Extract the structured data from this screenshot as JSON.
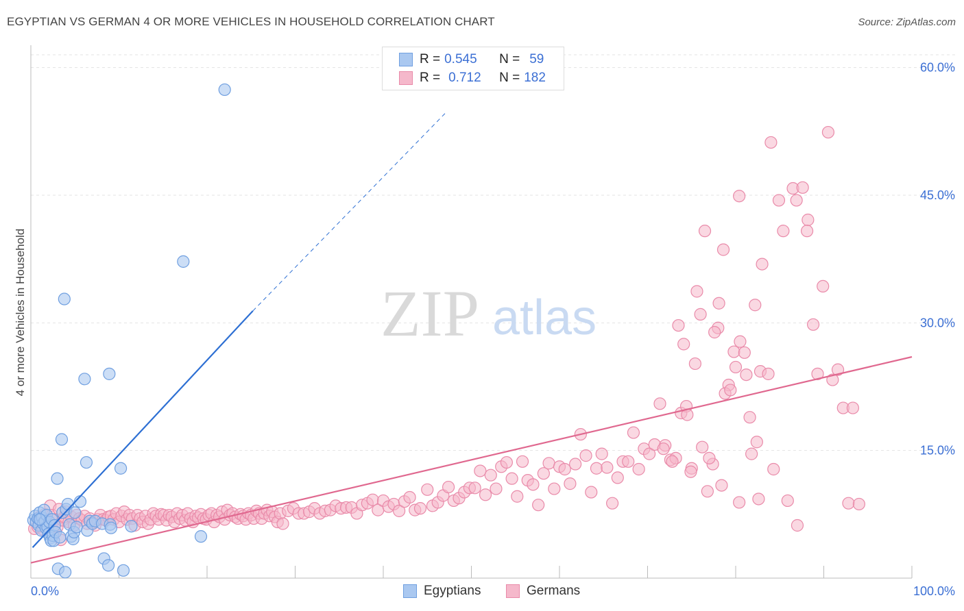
{
  "title": "EGYPTIAN VS GERMAN 4 OR MORE VEHICLES IN HOUSEHOLD CORRELATION CHART",
  "source": "Source: ZipAtlas.com",
  "watermark": {
    "zip": "ZIP",
    "atlas": "atlas"
  },
  "legend_top": {
    "egyptians": {
      "r_label": "R =",
      "r_value": "0.545",
      "n_label": "N =",
      "n_value": "59"
    },
    "germans": {
      "r_label": "R =",
      "r_value": "0.712",
      "n_label": "N =",
      "n_value": "182"
    }
  },
  "legend_bottom": {
    "egyptians": "Egyptians",
    "germans": "Germans"
  },
  "colors": {
    "egyptians_fill": "#aac8f0",
    "egyptians_stroke": "#6f9fe0",
    "egyptians_line": "#2d6fd3",
    "germans_fill": "#f5b8cb",
    "germans_stroke": "#e98aa9",
    "germans_line": "#e0688f",
    "tick_label": "#3b6fd4",
    "grid": "#e3e3e3"
  },
  "chart_data": {
    "type": "scatter",
    "title": "EGYPTIAN VS GERMAN 4 OR MORE VEHICLES IN HOUSEHOLD CORRELATION CHART",
    "xlabel": "",
    "ylabel": "4 or more Vehicles in Household",
    "xlim": [
      0,
      100
    ],
    "ylim": [
      0,
      61.5
    ],
    "x_tick_labels": [
      "0.0%",
      "100.0%"
    ],
    "y_ticks": [
      15,
      30,
      45,
      60
    ],
    "y_tick_labels": [
      "15.0%",
      "30.0%",
      "45.0%",
      "60.0%"
    ],
    "grid": true,
    "legend_position": "top-center",
    "series": [
      {
        "name": "Egyptians",
        "trend": {
          "x0": 0.2,
          "y0": 3.6,
          "x1": 25.2,
          "y1": 31.4,
          "dashed_to_x": 47,
          "dashed_to_y": 54.6
        },
        "points": [
          [
            0.3,
            6.8
          ],
          [
            0.5,
            7.3
          ],
          [
            0.6,
            6.6
          ],
          [
            0.8,
            7.0
          ],
          [
            0.9,
            6.2
          ],
          [
            1.0,
            7.7
          ],
          [
            1.1,
            6.9
          ],
          [
            1.2,
            5.6
          ],
          [
            1.3,
            7.1
          ],
          [
            1.4,
            6.4
          ],
          [
            1.5,
            8.0
          ],
          [
            1.6,
            6.7
          ],
          [
            1.7,
            5.9
          ],
          [
            1.8,
            7.4
          ],
          [
            1.9,
            6.0
          ],
          [
            2.0,
            5.2
          ],
          [
            2.1,
            6.6
          ],
          [
            2.2,
            4.7
          ],
          [
            2.3,
            4.4
          ],
          [
            2.4,
            6.9
          ],
          [
            2.5,
            5.0
          ],
          [
            2.6,
            4.4
          ],
          [
            2.7,
            6.2
          ],
          [
            2.8,
            5.4
          ],
          [
            3.0,
            11.7
          ],
          [
            3.1,
            1.1
          ],
          [
            3.3,
            4.8
          ],
          [
            3.5,
            16.3
          ],
          [
            3.6,
            7.7
          ],
          [
            3.8,
            32.8
          ],
          [
            3.9,
            0.7
          ],
          [
            4.0,
            8.1
          ],
          [
            4.2,
            8.7
          ],
          [
            4.4,
            6.3
          ],
          [
            4.6,
            4.9
          ],
          [
            4.8,
            4.6
          ],
          [
            4.9,
            5.4
          ],
          [
            5.0,
            7.7
          ],
          [
            5.2,
            6.0
          ],
          [
            5.6,
            9.0
          ],
          [
            6.1,
            23.4
          ],
          [
            6.3,
            13.6
          ],
          [
            6.4,
            5.6
          ],
          [
            6.7,
            6.7
          ],
          [
            7.0,
            6.4
          ],
          [
            7.3,
            6.7
          ],
          [
            8.1,
            6.4
          ],
          [
            8.3,
            2.3
          ],
          [
            8.8,
            1.5
          ],
          [
            8.9,
            24.0
          ],
          [
            9.0,
            6.3
          ],
          [
            9.1,
            5.9
          ],
          [
            10.2,
            12.9
          ],
          [
            10.5,
            0.9
          ],
          [
            11.4,
            6.1
          ],
          [
            17.3,
            37.2
          ],
          [
            19.3,
            4.9
          ],
          [
            22.0,
            57.4
          ],
          [
            1.0,
            6.9
          ]
        ]
      },
      {
        "name": "Germans",
        "trend": {
          "x0": 0,
          "y0": 1.8,
          "x1": 100,
          "y1": 26.0
        },
        "points": [
          [
            0.4,
            5.8
          ],
          [
            0.6,
            6.6
          ],
          [
            0.8,
            6.0
          ],
          [
            1.0,
            7.2
          ],
          [
            1.2,
            6.6
          ],
          [
            1.4,
            5.7
          ],
          [
            1.6,
            7.5
          ],
          [
            1.8,
            6.9
          ],
          [
            2.0,
            6.3
          ],
          [
            2.2,
            8.5
          ],
          [
            2.4,
            7.4
          ],
          [
            2.6,
            5.6
          ],
          [
            2.8,
            6.9
          ],
          [
            3.0,
            6.0
          ],
          [
            3.2,
            8.1
          ],
          [
            3.4,
            4.5
          ],
          [
            3.6,
            6.8
          ],
          [
            3.8,
            7.2
          ],
          [
            4.0,
            7.8
          ],
          [
            4.3,
            6.6
          ],
          [
            4.6,
            7.2
          ],
          [
            4.9,
            6.2
          ],
          [
            5.2,
            7.4
          ],
          [
            5.5,
            7.0
          ],
          [
            5.8,
            6.8
          ],
          [
            6.1,
            7.3
          ],
          [
            6.4,
            6.4
          ],
          [
            6.7,
            7.0
          ],
          [
            7.0,
            6.5
          ],
          [
            7.3,
            6.2
          ],
          [
            7.6,
            6.9
          ],
          [
            7.9,
            7.4
          ],
          [
            8.2,
            6.9
          ],
          [
            8.5,
            6.8
          ],
          [
            8.8,
            7.2
          ],
          [
            9.1,
            7.3
          ],
          [
            9.4,
            6.9
          ],
          [
            9.7,
            7.6
          ],
          [
            10.0,
            6.6
          ],
          [
            10.3,
            7.3
          ],
          [
            10.6,
            7.8
          ],
          [
            10.9,
            6.9
          ],
          [
            11.2,
            7.4
          ],
          [
            11.5,
            7.0
          ],
          [
            11.8,
            6.2
          ],
          [
            12.1,
            7.4
          ],
          [
            12.4,
            7.0
          ],
          [
            12.7,
            6.6
          ],
          [
            13.0,
            7.3
          ],
          [
            13.3,
            6.4
          ],
          [
            13.6,
            6.9
          ],
          [
            13.9,
            7.6
          ],
          [
            14.2,
            7.3
          ],
          [
            14.5,
            6.9
          ],
          [
            14.8,
            7.5
          ],
          [
            15.1,
            7.4
          ],
          [
            15.4,
            6.8
          ],
          [
            15.7,
            7.4
          ],
          [
            16.0,
            7.2
          ],
          [
            16.3,
            6.6
          ],
          [
            16.6,
            7.6
          ],
          [
            16.9,
            7.0
          ],
          [
            17.2,
            7.4
          ],
          [
            17.5,
            6.8
          ],
          [
            17.8,
            7.6
          ],
          [
            18.1,
            7.0
          ],
          [
            18.4,
            6.6
          ],
          [
            18.7,
            7.3
          ],
          [
            19.0,
            7.1
          ],
          [
            19.3,
            7.5
          ],
          [
            19.6,
            7.0
          ],
          [
            19.9,
            6.9
          ],
          [
            20.2,
            7.4
          ],
          [
            20.5,
            7.6
          ],
          [
            20.8,
            6.6
          ],
          [
            21.1,
            7.4
          ],
          [
            21.4,
            7.2
          ],
          [
            21.7,
            7.8
          ],
          [
            22.0,
            6.9
          ],
          [
            22.3,
            8.0
          ],
          [
            22.6,
            7.4
          ],
          [
            22.9,
            7.6
          ],
          [
            23.2,
            7.2
          ],
          [
            23.5,
            7.0
          ],
          [
            23.8,
            7.5
          ],
          [
            24.1,
            7.3
          ],
          [
            24.4,
            6.9
          ],
          [
            24.7,
            7.6
          ],
          [
            25.0,
            7.4
          ],
          [
            25.3,
            7.0
          ],
          [
            25.6,
            7.9
          ],
          [
            25.9,
            7.6
          ],
          [
            26.2,
            7.0
          ],
          [
            26.5,
            7.6
          ],
          [
            26.8,
            8.0
          ],
          [
            27.1,
            7.3
          ],
          [
            27.4,
            7.8
          ],
          [
            27.7,
            7.2
          ],
          [
            28.0,
            6.6
          ],
          [
            28.3,
            7.6
          ],
          [
            28.6,
            6.4
          ],
          [
            29.2,
            7.9
          ],
          [
            29.8,
            8.2
          ],
          [
            30.4,
            7.6
          ],
          [
            31.0,
            7.6
          ],
          [
            31.6,
            7.8
          ],
          [
            32.2,
            8.2
          ],
          [
            32.8,
            7.6
          ],
          [
            33.4,
            7.9
          ],
          [
            34.0,
            8.0
          ],
          [
            34.6,
            8.5
          ],
          [
            35.2,
            8.2
          ],
          [
            35.8,
            8.3
          ],
          [
            36.4,
            8.3
          ],
          [
            37.0,
            7.6
          ],
          [
            37.6,
            8.6
          ],
          [
            38.2,
            8.8
          ],
          [
            38.8,
            9.2
          ],
          [
            39.4,
            8.0
          ],
          [
            40.0,
            9.1
          ],
          [
            40.6,
            8.4
          ],
          [
            41.2,
            8.7
          ],
          [
            41.8,
            7.9
          ],
          [
            42.4,
            9.0
          ],
          [
            43.0,
            9.5
          ],
          [
            43.6,
            8.0
          ],
          [
            44.2,
            8.2
          ],
          [
            45.0,
            10.4
          ],
          [
            45.6,
            8.5
          ],
          [
            46.2,
            8.9
          ],
          [
            46.8,
            9.7
          ],
          [
            47.4,
            10.7
          ],
          [
            48.0,
            9.1
          ],
          [
            48.6,
            9.4
          ],
          [
            49.2,
            10.1
          ],
          [
            49.8,
            10.6
          ],
          [
            50.4,
            10.6
          ],
          [
            51.0,
            12.6
          ],
          [
            51.6,
            9.8
          ],
          [
            52.2,
            12.1
          ],
          [
            52.8,
            10.5
          ],
          [
            53.4,
            13.1
          ],
          [
            54.0,
            13.6
          ],
          [
            54.6,
            11.7
          ],
          [
            55.2,
            9.6
          ],
          [
            55.8,
            13.7
          ],
          [
            56.4,
            11.5
          ],
          [
            57.0,
            11.0
          ],
          [
            57.6,
            8.6
          ],
          [
            58.2,
            12.3
          ],
          [
            58.8,
            13.5
          ],
          [
            59.4,
            10.5
          ],
          [
            60.0,
            13.1
          ],
          [
            60.6,
            12.8
          ],
          [
            61.2,
            11.1
          ],
          [
            61.8,
            13.4
          ],
          [
            62.4,
            16.9
          ],
          [
            63.0,
            14.4
          ],
          [
            63.6,
            10.1
          ],
          [
            64.2,
            12.9
          ],
          [
            64.8,
            14.6
          ],
          [
            65.4,
            13.0
          ],
          [
            66.0,
            8.8
          ],
          [
            66.6,
            11.8
          ],
          [
            67.2,
            13.7
          ],
          [
            67.8,
            13.7
          ],
          [
            68.4,
            17.1
          ],
          [
            69.0,
            12.8
          ],
          [
            69.6,
            15.2
          ],
          [
            70.2,
            14.6
          ],
          [
            70.8,
            15.7
          ],
          [
            71.4,
            20.5
          ],
          [
            72.0,
            15.6
          ],
          [
            72.6,
            13.9
          ],
          [
            73.2,
            14.1
          ],
          [
            73.8,
            19.4
          ],
          [
            74.4,
            20.2
          ],
          [
            75.0,
            12.9
          ],
          [
            75.6,
            33.7
          ],
          [
            76.2,
            15.4
          ],
          [
            76.8,
            10.2
          ],
          [
            77.4,
            13.4
          ],
          [
            78.0,
            29.4
          ],
          [
            78.6,
            38.6
          ],
          [
            79.2,
            22.7
          ],
          [
            79.8,
            26.6
          ],
          [
            80.4,
            44.9
          ],
          [
            81.0,
            26.5
          ],
          [
            81.6,
            18.9
          ],
          [
            82.2,
            32.1
          ],
          [
            82.8,
            24.3
          ]
        ],
        "points_extra": [
          [
            71.8,
            15.2
          ],
          [
            72.8,
            13.7
          ],
          [
            73.5,
            29.7
          ],
          [
            74.1,
            27.5
          ],
          [
            74.9,
            12.5
          ],
          [
            75.4,
            25.2
          ],
          [
            76.0,
            31.0
          ],
          [
            76.5,
            40.8
          ],
          [
            77.0,
            14.1
          ],
          [
            77.6,
            28.9
          ],
          [
            78.1,
            32.3
          ],
          [
            78.8,
            21.7
          ],
          [
            79.4,
            22.1
          ],
          [
            80.0,
            24.8
          ],
          [
            80.5,
            27.8
          ],
          [
            81.2,
            23.9
          ],
          [
            81.8,
            14.6
          ],
          [
            82.4,
            16.0
          ],
          [
            83.0,
            36.9
          ],
          [
            83.7,
            24.0
          ],
          [
            84.3,
            12.8
          ],
          [
            84.9,
            44.4
          ],
          [
            85.4,
            40.8
          ],
          [
            85.9,
            9.1
          ],
          [
            86.5,
            45.8
          ],
          [
            87.0,
            6.2
          ],
          [
            87.6,
            45.9
          ],
          [
            88.2,
            42.1
          ],
          [
            88.8,
            29.8
          ],
          [
            89.3,
            24.0
          ],
          [
            89.9,
            34.3
          ],
          [
            90.5,
            52.4
          ],
          [
            91.0,
            23.3
          ],
          [
            91.6,
            24.5
          ],
          [
            92.2,
            20.0
          ],
          [
            92.8,
            8.8
          ],
          [
            93.3,
            20.0
          ],
          [
            94.0,
            8.7
          ],
          [
            84.0,
            51.2
          ],
          [
            86.9,
            44.4
          ],
          [
            88.1,
            40.8
          ],
          [
            80.4,
            8.9
          ],
          [
            82.6,
            9.3
          ],
          [
            78.4,
            10.9
          ],
          [
            74.5,
            19.2
          ]
        ]
      }
    ]
  }
}
